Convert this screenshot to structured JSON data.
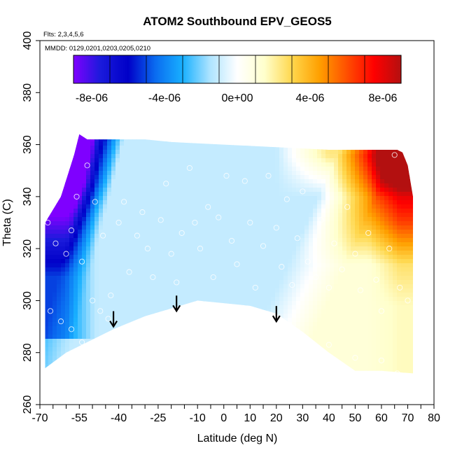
{
  "chart_data": {
    "type": "heatmap",
    "title": "ATOM2 Southbound EPV_GEOS5",
    "flights_note": "Flts: 2,3,4,5,6",
    "dates_note": "MMDD: 0129,0201,0203,0205,0210",
    "xlabel": "Latitude (deg N)",
    "ylabel": "Theta (C)",
    "xlim": [
      -70,
      80
    ],
    "ylim": [
      260,
      400
    ],
    "x_tick_labels": [
      "-70",
      "-55",
      "-40",
      "-25",
      "-10",
      "0",
      "10",
      "20",
      "30",
      "40",
      "50",
      "60",
      "70",
      "80"
    ],
    "y_tick_labels": [
      "260",
      "280",
      "300",
      "320",
      "340",
      "360",
      "380",
      "400"
    ],
    "colorbar": {
      "labels": [
        "-8e-06",
        "-4e-06",
        "0e+00",
        "4e-06",
        "8e-06"
      ],
      "range": [
        -9e-06,
        9e-06
      ],
      "colors": [
        "#7f00ff",
        "#1a1adb",
        "#0000c8",
        "#0a6cf0",
        "#18b0ff",
        "#aee4ff",
        "#ffffff",
        "#ffffcc",
        "#ffd74d",
        "#ffa000",
        "#ff5000",
        "#ff0000",
        "#b31010"
      ]
    },
    "arrows": [
      {
        "lat": -42,
        "theta": 290
      },
      {
        "lat": -18,
        "theta": 296
      },
      {
        "lat": 20,
        "theta": 292
      }
    ],
    "domain": {
      "top": [
        [
          -68,
          330
        ],
        [
          -62,
          340
        ],
        [
          -57,
          356
        ],
        [
          -55,
          364
        ],
        [
          -52,
          362
        ],
        [
          -30,
          362
        ],
        [
          -20,
          361
        ],
        [
          0,
          360
        ],
        [
          20,
          359
        ],
        [
          40,
          358
        ],
        [
          55,
          358
        ],
        [
          66,
          358
        ],
        [
          68,
          357
        ],
        [
          70,
          352
        ],
        [
          72,
          340
        ],
        [
          72,
          320
        ],
        [
          72,
          300
        ],
        [
          72,
          272
        ]
      ],
      "bottom": [
        [
          -68,
          274
        ],
        [
          -60,
          280
        ],
        [
          -50,
          285
        ],
        [
          -42,
          289
        ],
        [
          -30,
          294
        ],
        [
          -20,
          297
        ],
        [
          -10,
          300
        ],
        [
          0,
          299
        ],
        [
          10,
          298
        ],
        [
          20,
          295
        ],
        [
          30,
          288
        ],
        [
          40,
          280
        ],
        [
          50,
          273
        ],
        [
          60,
          273
        ],
        [
          72,
          272
        ]
      ]
    },
    "observations": [
      [
        -67,
        330
      ],
      [
        -66,
        336
      ],
      [
        -64,
        322
      ],
      [
        -60,
        318
      ],
      [
        -58,
        327
      ],
      [
        -56,
        340
      ],
      [
        -54,
        315
      ],
      [
        -52,
        352
      ],
      [
        -49,
        338
      ],
      [
        -46,
        325
      ],
      [
        -43,
        302
      ],
      [
        -40,
        330
      ],
      [
        -38,
        338
      ],
      [
        -36,
        311
      ],
      [
        -33,
        325
      ],
      [
        -31,
        334
      ],
      [
        -29,
        320
      ],
      [
        -27,
        309
      ],
      [
        -24,
        331
      ],
      [
        -22,
        345
      ],
      [
        -20,
        318
      ],
      [
        -18,
        307
      ],
      [
        -16,
        326
      ],
      [
        -13,
        351
      ],
      [
        -11,
        330
      ],
      [
        -9,
        320
      ],
      [
        -6,
        336
      ],
      [
        -4,
        309
      ],
      [
        -2,
        332
      ],
      [
        1,
        348
      ],
      [
        3,
        323
      ],
      [
        5,
        314
      ],
      [
        8,
        346
      ],
      [
        10,
        330
      ],
      [
        12,
        305
      ],
      [
        15,
        321
      ],
      [
        17,
        348
      ],
      [
        20,
        328
      ],
      [
        22,
        313
      ],
      [
        24,
        339
      ],
      [
        26,
        306
      ],
      [
        28,
        324
      ],
      [
        30,
        342
      ],
      [
        32,
        315
      ],
      [
        35,
        309
      ],
      [
        37,
        331
      ],
      [
        40,
        305
      ],
      [
        42,
        322
      ],
      [
        45,
        312
      ],
      [
        47,
        336
      ],
      [
        50,
        318
      ],
      [
        52,
        304
      ],
      [
        55,
        326
      ],
      [
        58,
        308
      ],
      [
        60,
        296
      ],
      [
        63,
        320
      ],
      [
        65,
        356
      ],
      [
        67,
        305
      ],
      [
        70,
        300
      ],
      [
        -66,
        296
      ],
      [
        -62,
        292
      ],
      [
        -58,
        289
      ],
      [
        -54,
        284
      ],
      [
        -50,
        300
      ],
      [
        -47,
        296
      ],
      [
        -44,
        293
      ],
      [
        30,
        286
      ],
      [
        40,
        283
      ],
      [
        50,
        278
      ],
      [
        60,
        277
      ],
      [
        66,
        272
      ]
    ]
  }
}
